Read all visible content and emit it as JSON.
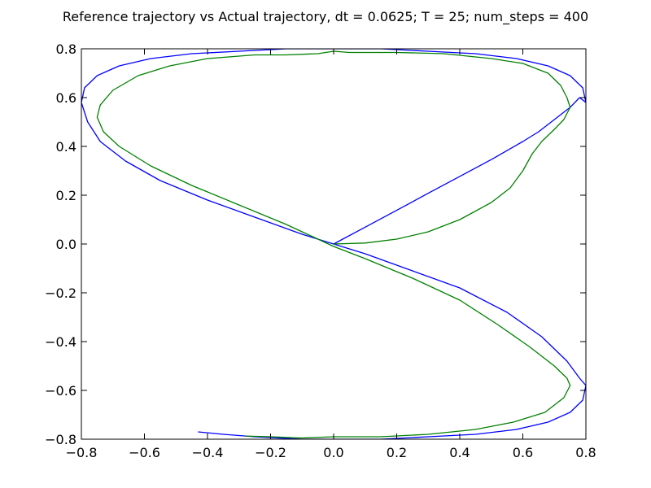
{
  "chart_data": {
    "type": "line",
    "title": "Reference trajectory vs Actual trajectory, dt = 0.0625; T = 25; num_steps = 400",
    "xlabel": "",
    "ylabel": "",
    "xlim": [
      -0.8,
      0.8
    ],
    "ylim": [
      -0.8,
      0.8
    ],
    "xticks": [
      -0.8,
      -0.6,
      -0.4,
      -0.2,
      0.0,
      0.2,
      0.4,
      0.6,
      0.8
    ],
    "yticks": [
      -0.8,
      -0.6,
      -0.4,
      -0.2,
      0.0,
      0.2,
      0.4,
      0.6,
      0.8
    ],
    "xtick_labels": [
      "−0.8",
      "−0.6",
      "−0.4",
      "−0.2",
      "0.0",
      "0.2",
      "0.4",
      "0.6",
      "0.8"
    ],
    "ytick_labels": [
      "−0.8",
      "−0.6",
      "−0.4",
      "−0.2",
      "0.0",
      "0.2",
      "0.4",
      "0.6",
      "0.8"
    ],
    "grid": false,
    "legend": "none",
    "series": [
      {
        "color": "#0000ff",
        "x": [
          0.0,
          0.1,
          0.2,
          0.3,
          0.4,
          0.5,
          0.6,
          0.65,
          0.7,
          0.75,
          0.78,
          0.8,
          0.79,
          0.75,
          0.68,
          0.58,
          0.45,
          0.3,
          0.15,
          0.0,
          -0.15,
          -0.3,
          -0.45,
          -0.58,
          -0.68,
          -0.75,
          -0.79,
          -0.8,
          -0.78,
          -0.74,
          -0.66,
          -0.55,
          -0.4,
          -0.25,
          -0.1,
          0.0,
          0.1,
          0.25,
          0.4,
          0.55,
          0.66,
          0.74,
          0.78,
          0.8,
          0.79,
          0.75,
          0.68,
          0.58,
          0.45,
          0.3,
          0.15,
          0.0,
          -0.1,
          -0.25,
          -0.35,
          -0.43
        ],
        "y": [
          0.0,
          0.069,
          0.138,
          0.208,
          0.277,
          0.346,
          0.42,
          0.46,
          0.51,
          0.56,
          0.6,
          0.58,
          0.64,
          0.69,
          0.73,
          0.76,
          0.78,
          0.79,
          0.8,
          0.8,
          0.8,
          0.79,
          0.78,
          0.76,
          0.73,
          0.69,
          0.64,
          0.58,
          0.5,
          0.42,
          0.34,
          0.26,
          0.18,
          0.11,
          0.04,
          0.0,
          -0.04,
          -0.11,
          -0.18,
          -0.28,
          -0.38,
          -0.48,
          -0.55,
          -0.58,
          -0.64,
          -0.69,
          -0.73,
          -0.76,
          -0.78,
          -0.79,
          -0.8,
          -0.8,
          -0.8,
          -0.79,
          -0.78,
          -0.77
        ]
      },
      {
        "color": "#008000",
        "x": [
          0.0,
          0.1,
          0.2,
          0.3,
          0.4,
          0.5,
          0.56,
          0.6,
          0.63,
          0.66,
          0.7,
          0.73,
          0.75,
          0.74,
          0.72,
          0.68,
          0.6,
          0.5,
          0.35,
          0.2,
          0.05,
          0.0,
          -0.05,
          -0.15,
          -0.25,
          -0.4,
          -0.52,
          -0.62,
          -0.7,
          -0.74,
          -0.75,
          -0.73,
          -0.68,
          -0.58,
          -0.45,
          -0.3,
          -0.15,
          0.0,
          0.1,
          0.25,
          0.4,
          0.52,
          0.62,
          0.7,
          0.74,
          0.75,
          0.73,
          0.67,
          0.57,
          0.45,
          0.3,
          0.15,
          0.0,
          -0.1,
          -0.2,
          -0.28
        ],
        "y": [
          0.0,
          0.004,
          0.02,
          0.05,
          0.1,
          0.17,
          0.23,
          0.3,
          0.37,
          0.42,
          0.47,
          0.51,
          0.56,
          0.6,
          0.65,
          0.7,
          0.74,
          0.76,
          0.78,
          0.785,
          0.785,
          0.79,
          0.78,
          0.775,
          0.775,
          0.76,
          0.73,
          0.69,
          0.63,
          0.57,
          0.52,
          0.46,
          0.4,
          0.32,
          0.24,
          0.16,
          0.08,
          -0.01,
          -0.06,
          -0.14,
          -0.23,
          -0.33,
          -0.42,
          -0.5,
          -0.55,
          -0.58,
          -0.63,
          -0.69,
          -0.73,
          -0.76,
          -0.78,
          -0.79,
          -0.79,
          -0.795,
          -0.79,
          -0.787
        ]
      }
    ]
  }
}
